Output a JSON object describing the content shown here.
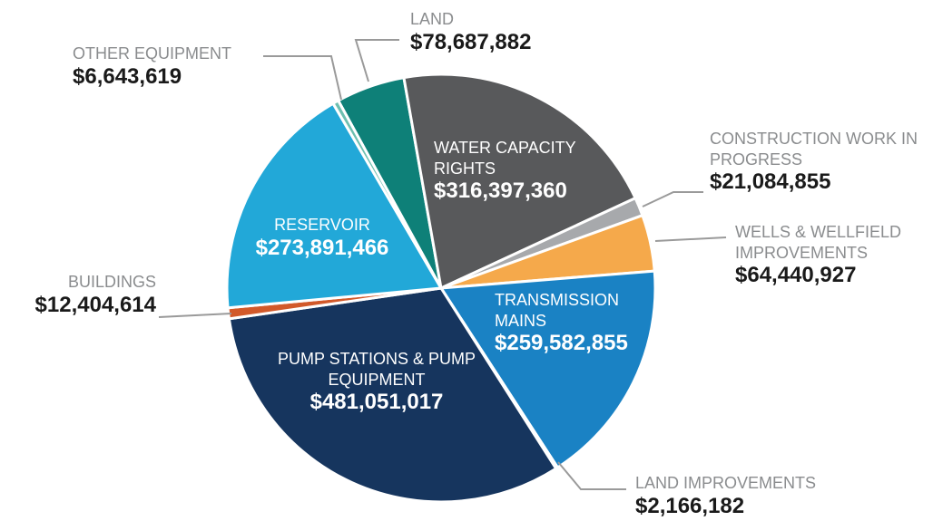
{
  "chart_data": {
    "type": "pie",
    "categories": [
      "LAND",
      "WATER CAPACITY RIGHTS",
      "CONSTRUCTION WORK IN PROGRESS",
      "WELLS & WELLFIELD IMPROVEMENTS",
      "TRANSMISSION MAINS",
      "LAND IMPROVEMENTS",
      "PUMP STATIONS & PUMP EQUIPMENT",
      "BUILDINGS",
      "RESERVOIR",
      "OTHER EQUIPMENT"
    ],
    "values": [
      78687882,
      316397360,
      21084855,
      64440927,
      259582855,
      2166182,
      481051017,
      12404614,
      273891466,
      6643619
    ],
    "value_labels": [
      "$78,687,882",
      "$316,397,360",
      "$21,084,855",
      "$64,440,927",
      "$259,582,855",
      "$2,166,182",
      "$481,051,017",
      "$12,404,614",
      "$273,891,466",
      "$6,643,619"
    ],
    "colors": [
      "#0e8078",
      "#58595b",
      "#a7a9ac",
      "#f5a94b",
      "#1a82c4",
      "#3a86b8",
      "#16355e",
      "#d2592a",
      "#22a8d8",
      "#6dbfb0"
    ]
  }
}
